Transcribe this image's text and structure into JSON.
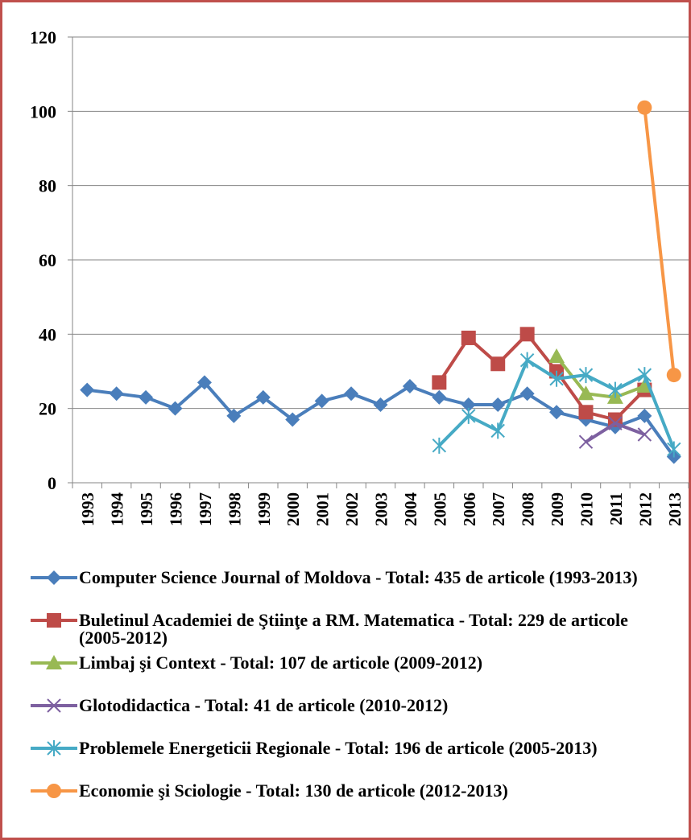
{
  "chart_data": {
    "type": "line",
    "categories": [
      "1993",
      "1994",
      "1995",
      "1996",
      "1997",
      "1998",
      "1999",
      "2000",
      "2001",
      "2002",
      "2003",
      "2004",
      "2005",
      "2006",
      "2007",
      "2008",
      "2009",
      "2010",
      "2011",
      "2012",
      "2013"
    ],
    "series": [
      {
        "name": "Computer Science Journal of Moldova - Total: 435 de articole (1993-2013)",
        "color": "#4a7ebb",
        "marker": "diamond",
        "values": [
          25,
          24,
          23,
          20,
          27,
          18,
          23,
          17,
          22,
          24,
          21,
          26,
          23,
          21,
          21,
          24,
          19,
          17,
          15,
          18,
          7
        ]
      },
      {
        "name": "Buletinul Academiei de Ştiinţe a RM. Matematica - Total: 229 de articole (2005-2012)",
        "color": "#be4b48",
        "marker": "square",
        "values": [
          null,
          null,
          null,
          null,
          null,
          null,
          null,
          null,
          null,
          null,
          null,
          null,
          27,
          39,
          32,
          40,
          30,
          19,
          17,
          25,
          null
        ]
      },
      {
        "name": "Limbaj şi Context - Total: 107 de articole (2009-2012)",
        "color": "#98b954",
        "marker": "triangle",
        "values": [
          null,
          null,
          null,
          null,
          null,
          null,
          null,
          null,
          null,
          null,
          null,
          null,
          null,
          null,
          null,
          null,
          34,
          24,
          23,
          26,
          null
        ]
      },
      {
        "name": "Glotodidactica - Total: 41 de articole (2010-2012)",
        "color": "#7d60a0",
        "marker": "x",
        "values": [
          null,
          null,
          null,
          null,
          null,
          null,
          null,
          null,
          null,
          null,
          null,
          null,
          null,
          null,
          null,
          null,
          null,
          11,
          16,
          13,
          null
        ]
      },
      {
        "name": "Problemele Energeticii Regionale - Total: 196 de articole (2005-2013)",
        "color": "#46aac5",
        "marker": "star",
        "values": [
          null,
          null,
          null,
          null,
          null,
          null,
          null,
          null,
          null,
          null,
          null,
          null,
          10,
          18,
          14,
          33,
          28,
          29,
          25,
          29,
          9
        ]
      },
      {
        "name": "Economie şi Sciologie - Total: 130 de articole (2012-2013)",
        "color": "#f79646",
        "marker": "circle",
        "values": [
          null,
          null,
          null,
          null,
          null,
          null,
          null,
          null,
          null,
          null,
          null,
          null,
          null,
          null,
          null,
          null,
          null,
          null,
          null,
          101,
          29
        ]
      }
    ],
    "ylim": [
      0,
      120
    ],
    "yticks": [
      0,
      20,
      40,
      60,
      80,
      100,
      120
    ],
    "grid": true,
    "legend": "bottom"
  }
}
